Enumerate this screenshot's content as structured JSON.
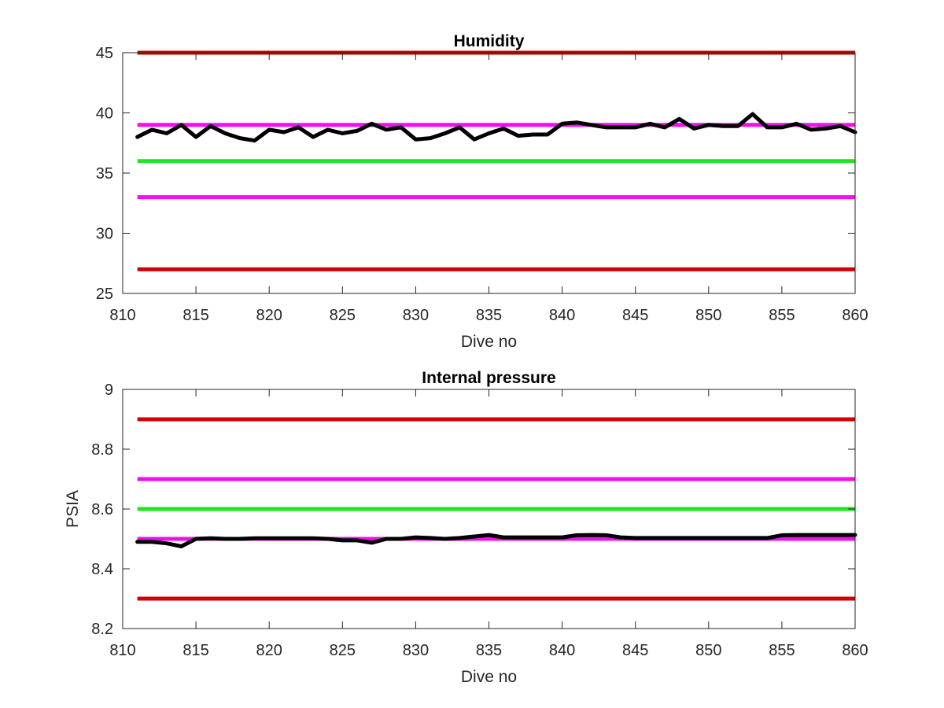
{
  "chart_data": [
    {
      "type": "line",
      "title": "Humidity",
      "xlabel": "Dive no",
      "ylabel": "",
      "xlim": [
        810,
        860
      ],
      "ylim": [
        25,
        45
      ],
      "xticks": [
        810,
        815,
        820,
        825,
        830,
        835,
        840,
        845,
        850,
        855,
        860
      ],
      "yticks": [
        25,
        30,
        35,
        40,
        45
      ],
      "grid": false,
      "reference_lines": [
        {
          "y": 45,
          "color": "#d10000"
        },
        {
          "y": 39,
          "color": "#ee11ee"
        },
        {
          "y": 36,
          "color": "#22e522"
        },
        {
          "y": 33,
          "color": "#ee11ee"
        },
        {
          "y": 27,
          "color": "#d10000"
        }
      ],
      "series": [
        {
          "color": "#000000",
          "x": [
            811,
            812,
            813,
            814,
            815,
            816,
            817,
            818,
            819,
            820,
            821,
            822,
            823,
            824,
            825,
            826,
            827,
            828,
            829,
            830,
            831,
            832,
            833,
            834,
            835,
            836,
            837,
            838,
            839,
            840,
            841,
            842,
            843,
            844,
            845,
            846,
            847,
            848,
            849,
            850,
            851,
            852,
            853,
            854,
            855,
            856,
            857,
            858,
            859,
            860
          ],
          "y": [
            38.0,
            38.6,
            38.3,
            39.0,
            38.0,
            38.9,
            38.3,
            37.9,
            37.7,
            38.6,
            38.4,
            38.8,
            38.0,
            38.6,
            38.3,
            38.5,
            39.1,
            38.6,
            38.8,
            37.8,
            37.9,
            38.3,
            38.8,
            37.8,
            38.3,
            38.7,
            38.1,
            38.2,
            38.2,
            39.1,
            39.2,
            39.0,
            38.8,
            38.8,
            38.8,
            39.1,
            38.8,
            39.5,
            38.7,
            39.0,
            38.9,
            38.9,
            39.9,
            38.8,
            38.8,
            39.1,
            38.6,
            38.7,
            38.9,
            38.4
          ]
        }
      ]
    },
    {
      "type": "line",
      "title": "Internal pressure",
      "xlabel": "Dive no",
      "ylabel": "PSIA",
      "xlim": [
        810,
        860
      ],
      "ylim": [
        8.2,
        9
      ],
      "xticks": [
        810,
        815,
        820,
        825,
        830,
        835,
        840,
        845,
        850,
        855,
        860
      ],
      "yticks": [
        "8.2",
        "8.4",
        "8.6",
        "8.8",
        "9"
      ],
      "grid": false,
      "reference_lines": [
        {
          "y": 8.9,
          "color": "#d10000"
        },
        {
          "y": 8.7,
          "color": "#ee11ee"
        },
        {
          "y": 8.6,
          "color": "#22e522"
        },
        {
          "y": 8.5,
          "color": "#ee11ee"
        },
        {
          "y": 8.3,
          "color": "#d10000"
        }
      ],
      "series": [
        {
          "color": "#000000",
          "x": [
            811,
            812,
            813,
            814,
            815,
            816,
            817,
            818,
            819,
            820,
            821,
            822,
            823,
            824,
            825,
            826,
            827,
            828,
            829,
            830,
            831,
            832,
            833,
            834,
            835,
            836,
            837,
            838,
            839,
            840,
            841,
            842,
            843,
            844,
            845,
            846,
            847,
            848,
            849,
            850,
            851,
            852,
            853,
            854,
            855,
            856,
            857,
            858,
            859,
            860
          ],
          "y": [
            8.49,
            8.49,
            8.485,
            8.475,
            8.5,
            8.502,
            8.5,
            8.5,
            8.502,
            8.502,
            8.502,
            8.502,
            8.502,
            8.5,
            8.495,
            8.495,
            8.487,
            8.5,
            8.5,
            8.505,
            8.503,
            8.5,
            8.503,
            8.508,
            8.513,
            8.505,
            8.505,
            8.505,
            8.505,
            8.505,
            8.512,
            8.513,
            8.512,
            8.505,
            8.503,
            8.503,
            8.503,
            8.503,
            8.503,
            8.503,
            8.503,
            8.503,
            8.503,
            8.503,
            8.512,
            8.513,
            8.513,
            8.513,
            8.513,
            8.513
          ]
        }
      ]
    }
  ]
}
